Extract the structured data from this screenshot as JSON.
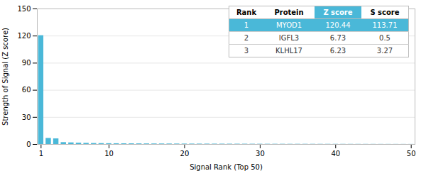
{
  "chart_data": {
    "type": "bar",
    "xlabel": "Signal Rank (Top 50)",
    "ylabel": "Strength of Signal (Z score)",
    "x": [
      1,
      2,
      3,
      4,
      5,
      6,
      7,
      8,
      9,
      10,
      11,
      12,
      13,
      14,
      15,
      16,
      17,
      18,
      19,
      20,
      21,
      22,
      23,
      24,
      25,
      26,
      27,
      28,
      29,
      30,
      31,
      32,
      33,
      34,
      35,
      36,
      37,
      38,
      39,
      40,
      41,
      42,
      43,
      44,
      45,
      46,
      47,
      48,
      49,
      50
    ],
    "values": [
      120.44,
      6.73,
      6.23,
      2.1,
      1.8,
      1.5,
      1.3,
      1.1,
      1.0,
      0.9,
      0.85,
      0.8,
      0.75,
      0.7,
      0.65,
      0.62,
      0.59,
      0.56,
      0.53,
      0.5,
      0.48,
      0.46,
      0.44,
      0.42,
      0.4,
      0.38,
      0.36,
      0.34,
      0.32,
      0.3,
      0.28,
      0.27,
      0.26,
      0.25,
      0.24,
      0.23,
      0.22,
      0.21,
      0.2,
      0.19,
      0.18,
      0.17,
      0.16,
      0.15,
      0.14,
      0.13,
      0.12,
      0.11,
      0.1,
      0.09
    ],
    "color": "#4ab8d8",
    "xlim": [
      0.5,
      50.5
    ],
    "xticks": [
      1,
      10,
      20,
      30,
      40,
      50
    ],
    "ylim": [
      0,
      150
    ],
    "yticks": [
      0,
      30,
      60,
      90,
      120,
      150
    ],
    "grid": true,
    "table": {
      "header": [
        "Rank",
        "Protein",
        "Z score",
        "S score"
      ],
      "highlight_header": [
        false,
        false,
        true,
        false
      ],
      "rows": [
        [
          "1",
          "MYOD1",
          "120.44",
          "113.71"
        ],
        [
          "2",
          "IGFL3",
          "6.73",
          "0.5"
        ],
        [
          "3",
          "KLHL17",
          "6.23",
          "3.27"
        ]
      ],
      "highlight": [
        true,
        false,
        false
      ],
      "color": "#4ab8d8"
    }
  }
}
